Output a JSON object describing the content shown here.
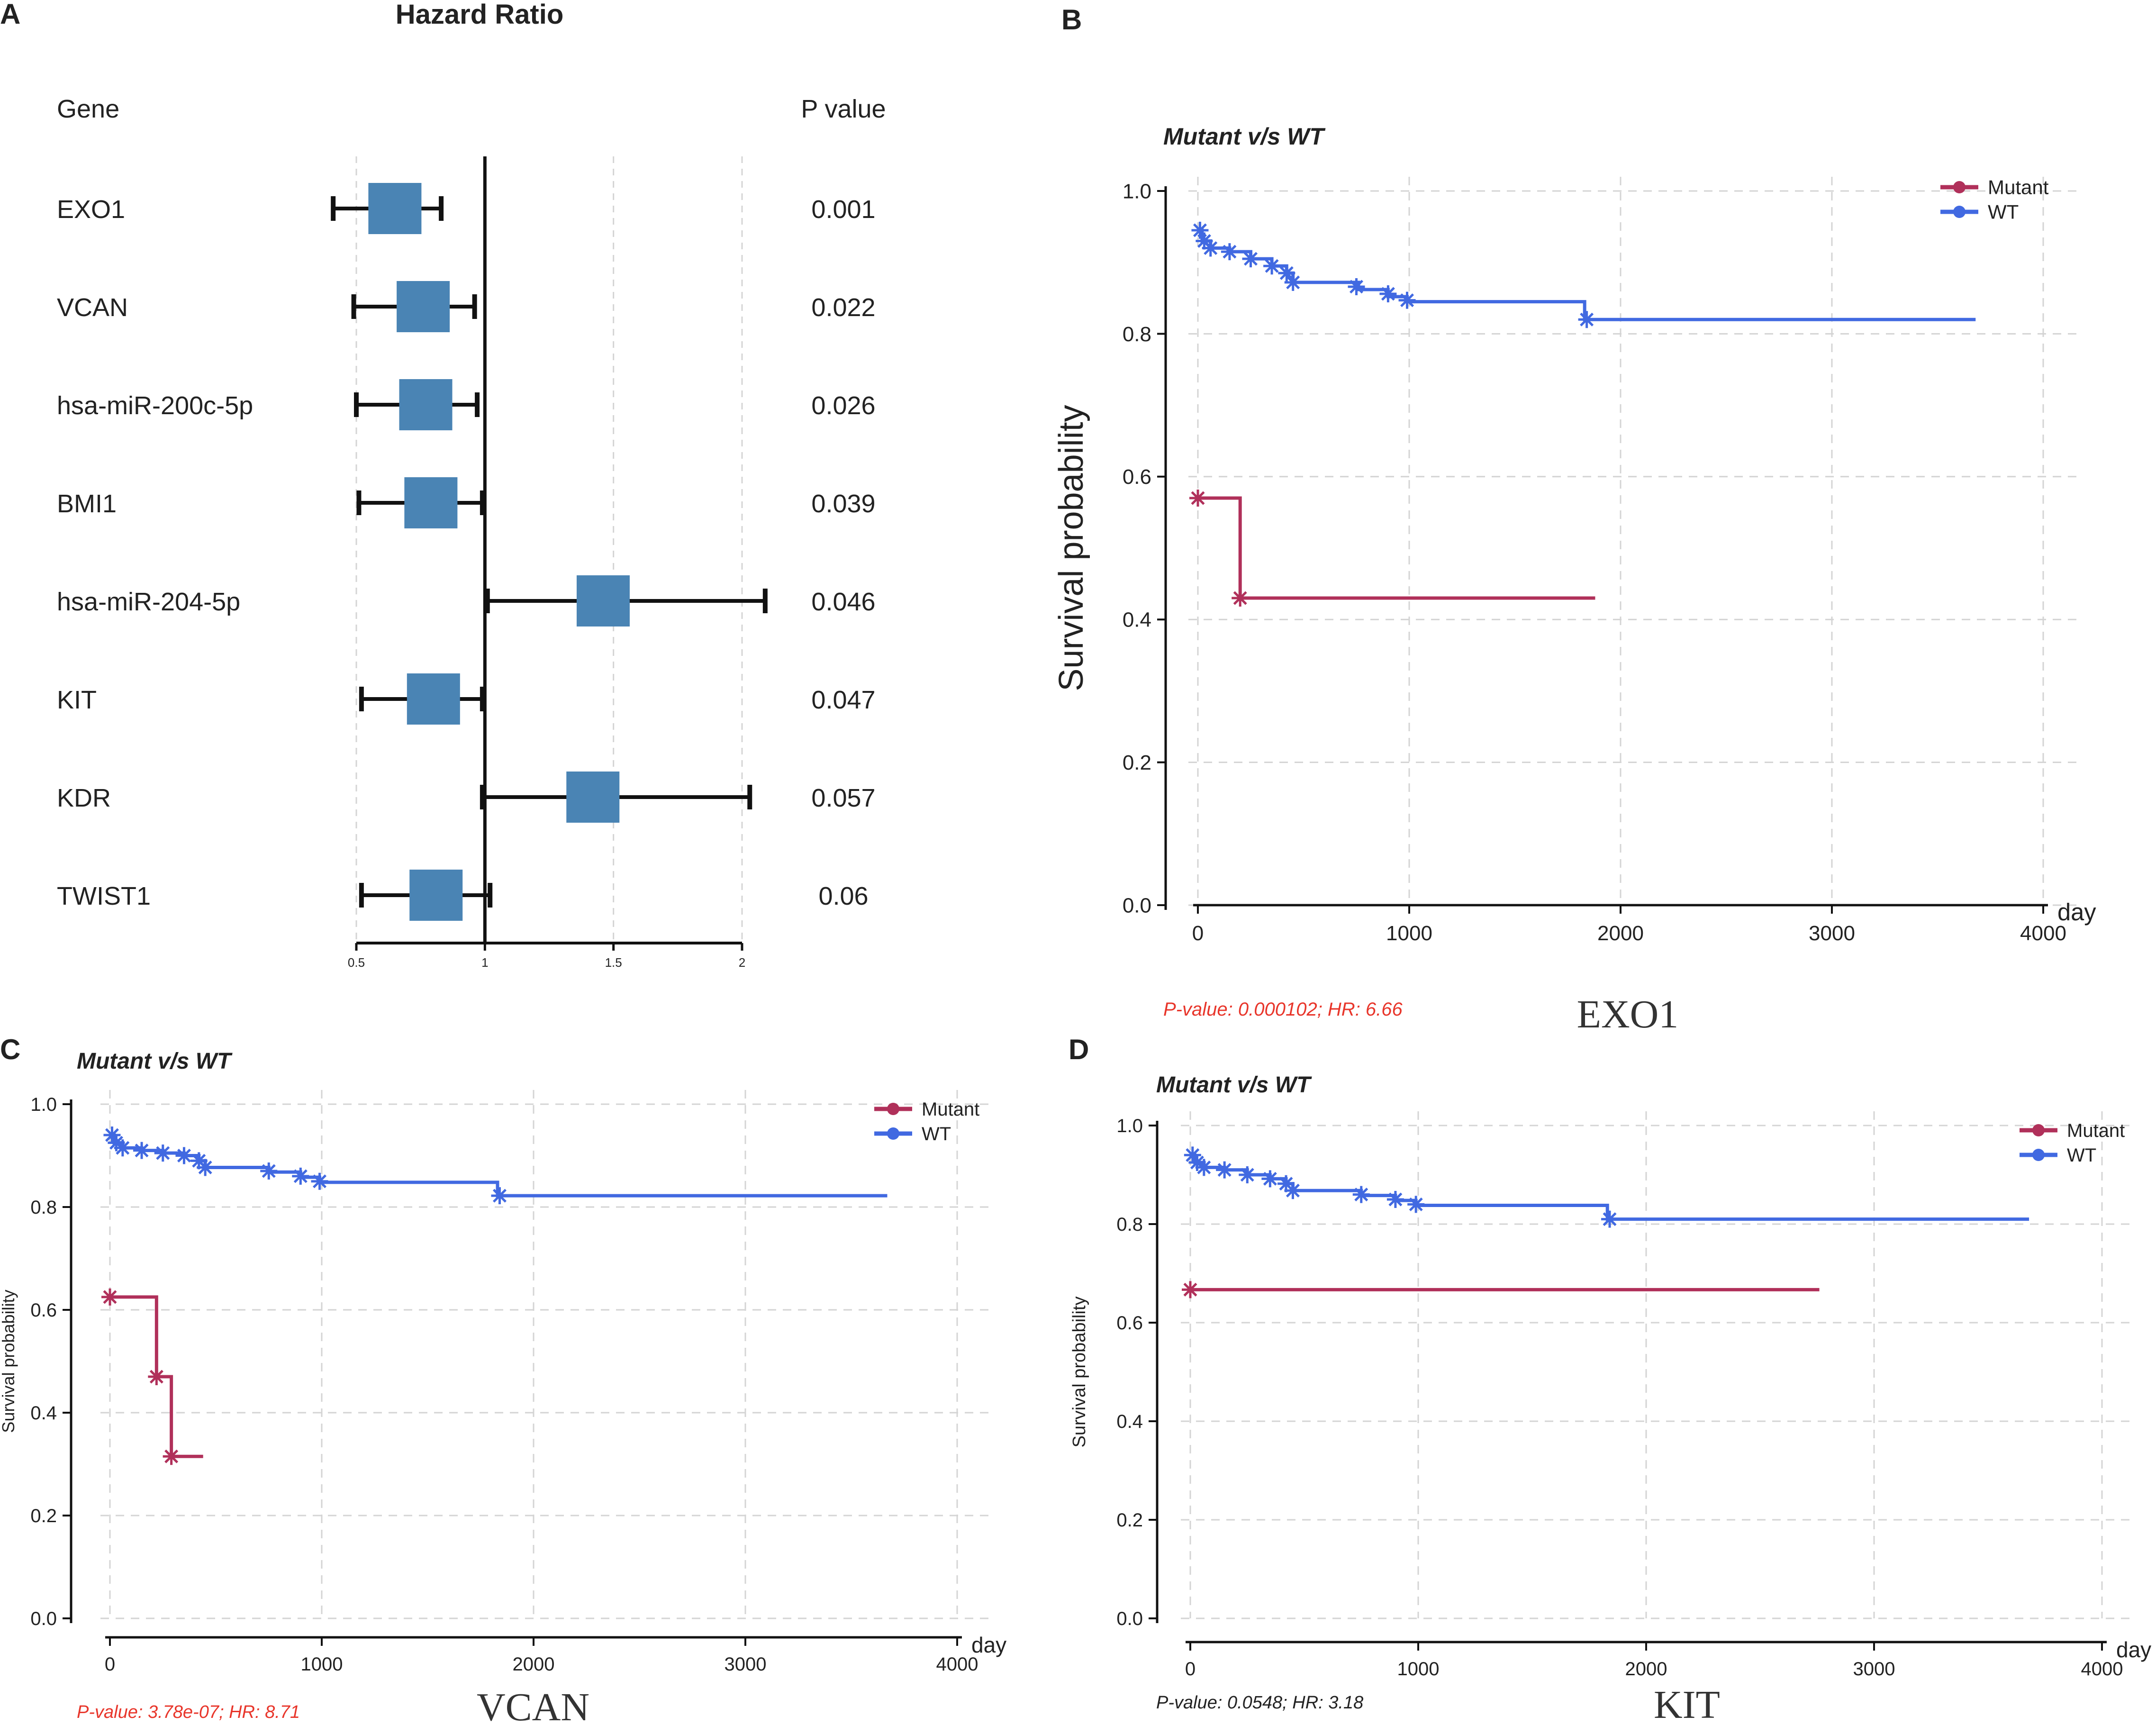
{
  "colors": {
    "mutant": "#b0305a",
    "wt": "#4169e1",
    "box": "#4a84b4",
    "grid": "#d4d4d4",
    "pvalue_red": "#e8352a",
    "pvalue_black": "#222222"
  },
  "panel_labels": [
    "A",
    "B",
    "C",
    "D"
  ],
  "chart_data": [
    {
      "type": "forest",
      "panel": "A",
      "title": "Hazard Ratio",
      "gene_header": "Gene",
      "pvalue_header": "P value",
      "ticks": [
        "0.5",
        "1",
        "1.5",
        "2"
      ],
      "xlim": [
        0.5,
        2
      ],
      "rows": [
        {
          "gene": "EXO1",
          "hr": 0.65,
          "lo": 0.41,
          "hi": 0.83,
          "p": "0.001"
        },
        {
          "gene": "VCAN",
          "hr": 0.76,
          "lo": 0.49,
          "hi": 0.96,
          "p": "0.022"
        },
        {
          "gene": "hsa-miR-200c-5p",
          "hr": 0.77,
          "lo": 0.5,
          "hi": 0.97,
          "p": "0.026"
        },
        {
          "gene": "BMI1",
          "hr": 0.79,
          "lo": 0.51,
          "hi": 0.99,
          "p": "0.039"
        },
        {
          "gene": "hsa-miR-204-5p",
          "hr": 1.46,
          "lo": 1.01,
          "hi": 2.09,
          "p": "0.046"
        },
        {
          "gene": "KIT",
          "hr": 0.8,
          "lo": 0.52,
          "hi": 0.99,
          "p": "0.047"
        },
        {
          "gene": "KDR",
          "hr": 1.42,
          "lo": 0.99,
          "hi": 2.03,
          "p": "0.057"
        },
        {
          "gene": "TWIST1",
          "hr": 0.81,
          "lo": 0.52,
          "hi": 1.02,
          "p": "0.06"
        }
      ]
    },
    {
      "type": "line",
      "panel": "B",
      "subtitle": "Mutant v/s WT",
      "ylabel": "Survival probability",
      "xlabel": "day",
      "xlim": [
        0,
        4000
      ],
      "ylim": [
        0,
        1
      ],
      "xticks": [
        "0",
        "1000",
        "2000",
        "3000",
        "4000"
      ],
      "yticks": [
        "0.0",
        "0.2",
        "0.4",
        "0.6",
        "0.8",
        "1.0"
      ],
      "legend": [
        "Mutant",
        "WT"
      ],
      "pvalue_text": "P-value: 0.000102; HR: 6.66",
      "gene": "EXO1",
      "series": [
        {
          "name": "Mutant",
          "points": [
            [
              0,
              0.57
            ],
            [
              200,
              0.57
            ],
            [
              200,
              0.43
            ],
            [
              1880,
              0.43
            ]
          ],
          "censors": [
            [
              0,
              0.57
            ],
            [
              200,
              0.43
            ]
          ]
        },
        {
          "name": "WT",
          "points": [
            [
              0,
              0.945
            ],
            [
              20,
              0.93
            ],
            [
              60,
              0.92
            ],
            [
              150,
              0.915
            ],
            [
              250,
              0.905
            ],
            [
              350,
              0.895
            ],
            [
              420,
              0.885
            ],
            [
              450,
              0.872
            ],
            [
              750,
              0.872
            ],
            [
              760,
              0.862
            ],
            [
              880,
              0.862
            ],
            [
              900,
              0.852
            ],
            [
              980,
              0.852
            ],
            [
              990,
              0.845
            ],
            [
              1830,
              0.845
            ],
            [
              1830,
              0.82
            ],
            [
              3680,
              0.82
            ]
          ],
          "censors": [
            [
              10,
              0.945
            ],
            [
              30,
              0.93
            ],
            [
              60,
              0.92
            ],
            [
              150,
              0.915
            ],
            [
              250,
              0.905
            ],
            [
              350,
              0.895
            ],
            [
              420,
              0.885
            ],
            [
              450,
              0.872
            ],
            [
              750,
              0.866
            ],
            [
              900,
              0.856
            ],
            [
              990,
              0.847
            ],
            [
              1840,
              0.82
            ]
          ]
        }
      ]
    },
    {
      "type": "line",
      "panel": "C",
      "subtitle": "Mutant v/s WT",
      "ylabel": "Survival probability",
      "xlabel": "day",
      "xlim": [
        0,
        4000
      ],
      "ylim": [
        0,
        1
      ],
      "xticks": [
        "0",
        "1000",
        "2000",
        "3000",
        "4000"
      ],
      "yticks": [
        "0.0",
        "0.2",
        "0.4",
        "0.6",
        "0.8",
        "1.0"
      ],
      "legend": [
        "Mutant",
        "WT"
      ],
      "pvalue_text": "P-value: 3.78e-07; HR: 8.71",
      "gene": "VCAN",
      "series": [
        {
          "name": "Mutant",
          "points": [
            [
              0,
              0.625
            ],
            [
              220,
              0.625
            ],
            [
              220,
              0.47
            ],
            [
              290,
              0.47
            ],
            [
              290,
              0.315
            ],
            [
              440,
              0.315
            ]
          ],
          "censors": [
            [
              0,
              0.625
            ],
            [
              220,
              0.47
            ],
            [
              290,
              0.315
            ]
          ]
        },
        {
          "name": "WT",
          "points": [
            [
              0,
              0.94
            ],
            [
              20,
              0.925
            ],
            [
              60,
              0.915
            ],
            [
              150,
              0.91
            ],
            [
              250,
              0.905
            ],
            [
              350,
              0.9
            ],
            [
              420,
              0.89
            ],
            [
              450,
              0.877
            ],
            [
              740,
              0.877
            ],
            [
              750,
              0.868
            ],
            [
              880,
              0.868
            ],
            [
              900,
              0.858
            ],
            [
              980,
              0.858
            ],
            [
              990,
              0.848
            ],
            [
              1830,
              0.848
            ],
            [
              1830,
              0.822
            ],
            [
              3670,
              0.822
            ]
          ],
          "censors": [
            [
              10,
              0.94
            ],
            [
              30,
              0.925
            ],
            [
              60,
              0.915
            ],
            [
              150,
              0.91
            ],
            [
              250,
              0.905
            ],
            [
              350,
              0.9
            ],
            [
              420,
              0.89
            ],
            [
              450,
              0.877
            ],
            [
              750,
              0.87
            ],
            [
              900,
              0.86
            ],
            [
              990,
              0.85
            ],
            [
              1840,
              0.822
            ]
          ]
        }
      ]
    },
    {
      "type": "line",
      "panel": "D",
      "subtitle": "Mutant v/s WT",
      "ylabel": "Survival probability",
      "xlabel": "day",
      "xlim": [
        0,
        4000
      ],
      "ylim": [
        0,
        1
      ],
      "xticks": [
        "0",
        "1000",
        "2000",
        "3000",
        "4000"
      ],
      "yticks": [
        "0.0",
        "0.2",
        "0.4",
        "0.6",
        "0.8",
        "1.0"
      ],
      "legend": [
        "Mutant",
        "WT"
      ],
      "pvalue_text": "P-value: 0.0548; HR: 3.18",
      "gene": "KIT",
      "series": [
        {
          "name": "Mutant",
          "points": [
            [
              0,
              0.667
            ],
            [
              2760,
              0.667
            ]
          ],
          "censors": [
            [
              0,
              0.667
            ]
          ]
        },
        {
          "name": "WT",
          "points": [
            [
              0,
              0.94
            ],
            [
              20,
              0.925
            ],
            [
              60,
              0.915
            ],
            [
              150,
              0.91
            ],
            [
              250,
              0.9
            ],
            [
              350,
              0.892
            ],
            [
              420,
              0.882
            ],
            [
              450,
              0.868
            ],
            [
              740,
              0.868
            ],
            [
              750,
              0.858
            ],
            [
              880,
              0.858
            ],
            [
              900,
              0.848
            ],
            [
              980,
              0.848
            ],
            [
              990,
              0.838
            ],
            [
              1830,
              0.838
            ],
            [
              1830,
              0.81
            ],
            [
              3680,
              0.81
            ]
          ],
          "censors": [
            [
              10,
              0.94
            ],
            [
              30,
              0.925
            ],
            [
              60,
              0.915
            ],
            [
              150,
              0.91
            ],
            [
              250,
              0.9
            ],
            [
              350,
              0.892
            ],
            [
              420,
              0.882
            ],
            [
              450,
              0.868
            ],
            [
              750,
              0.86
            ],
            [
              900,
              0.85
            ],
            [
              990,
              0.84
            ],
            [
              1840,
              0.81
            ]
          ]
        }
      ]
    }
  ]
}
